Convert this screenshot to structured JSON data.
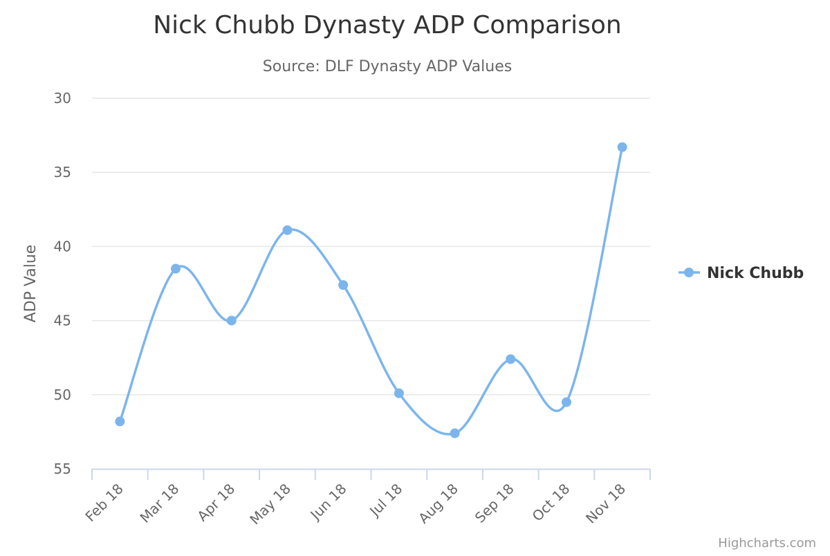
{
  "chart_data": {
    "type": "line",
    "title": "Nick Chubb Dynasty ADP Comparison",
    "subtitle": "Source: DLF Dynasty ADP Values",
    "xlabel": "",
    "ylabel": "ADP Value",
    "categories": [
      "Feb 18",
      "Mar 18",
      "Apr 18",
      "May 18",
      "Jun 18",
      "Jul 18",
      "Aug 18",
      "Sep 18",
      "Oct 18",
      "Nov 18"
    ],
    "series": [
      {
        "name": "Nick Chubb",
        "values": [
          51.8,
          41.5,
          45.0,
          38.9,
          42.6,
          49.9,
          52.6,
          47.6,
          50.5,
          33.3
        ]
      }
    ],
    "ylim": [
      30,
      55
    ],
    "y_reversed": true,
    "y_ticks": [
      30,
      35,
      40,
      45,
      50,
      55
    ],
    "grid": true,
    "legend_position": "right",
    "smooth": true,
    "colors": {
      "series": "#7cb5ec",
      "grid": "#e6e6e6",
      "axis": "#ccd6eb"
    }
  },
  "credits": "Highcharts.com"
}
